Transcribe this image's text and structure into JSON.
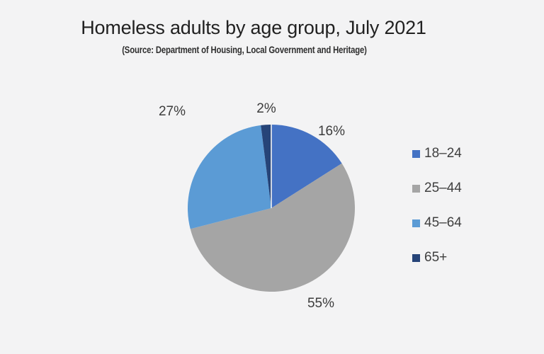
{
  "page": {
    "background_color": "#f3f3f4"
  },
  "header": {
    "title": "Homeless adults by age group, July 2021",
    "subtitle": "(Source: Department of Housing, Local Government and Heritage)"
  },
  "chart_data": {
    "type": "pie",
    "title": "Homeless adults by age group, July 2021",
    "subtitle": "(Source: Department of Housing, Local Government and Heritage)",
    "categories": [
      "18–24",
      "25–44",
      "45–64",
      "65+"
    ],
    "values": [
      16,
      55,
      27,
      2
    ],
    "unit": "%",
    "labels": [
      "16%",
      "55%",
      "27%",
      "2%"
    ],
    "colors": [
      "#4472C4",
      "#A5A5A5",
      "#5B9BD5",
      "#264478"
    ],
    "start_angle_deg": 0,
    "direction": "clockwise",
    "legend_position": "right",
    "legend_entries": [
      "18–24",
      "25–44",
      "45–64",
      "65+"
    ]
  }
}
